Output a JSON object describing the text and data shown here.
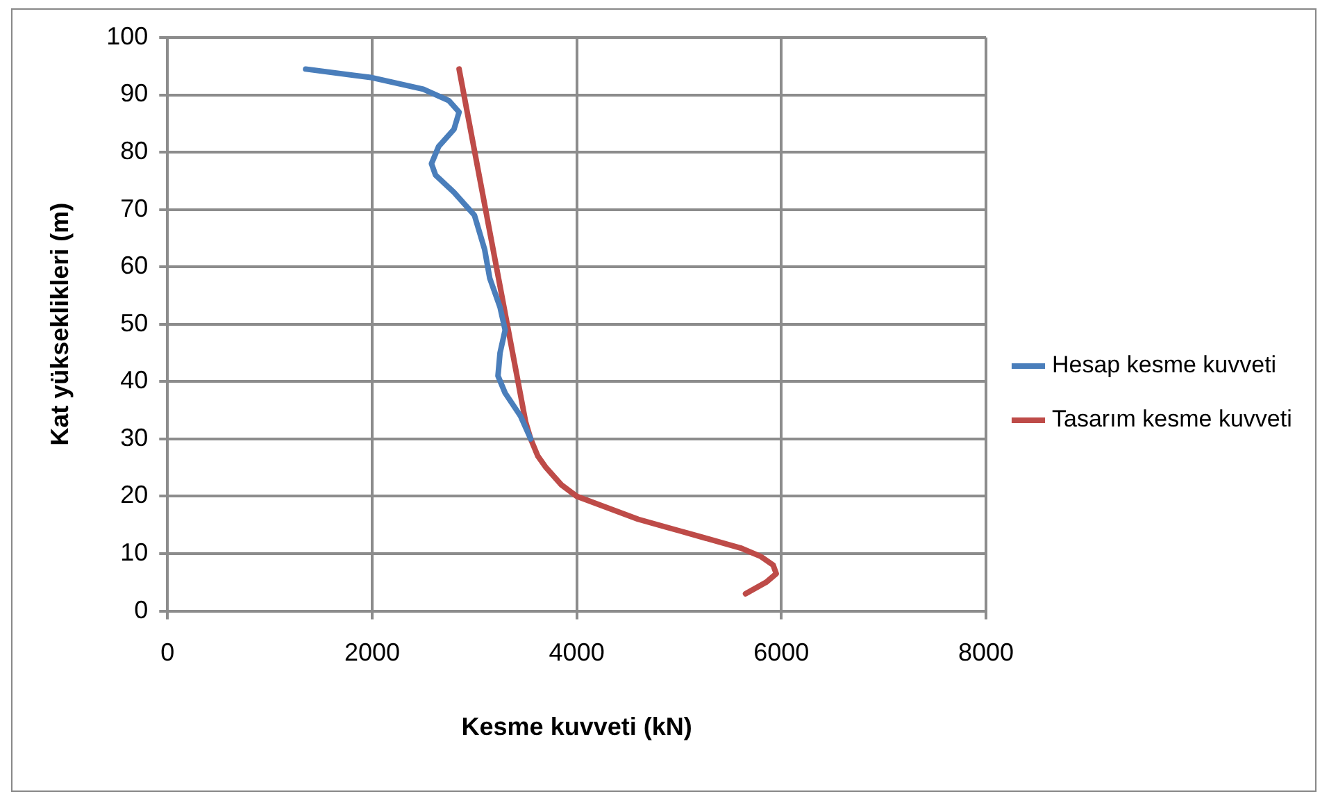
{
  "chart_data": {
    "type": "line",
    "xlabel": "Kesme kuvveti (kN)",
    "ylabel": "Kat yükseklikleri (m)",
    "xlim": [
      0,
      8000
    ],
    "xticks": [
      0,
      2000,
      4000,
      6000,
      8000
    ],
    "ylim": [
      0,
      100
    ],
    "yticks": [
      0,
      10,
      20,
      30,
      40,
      50,
      60,
      70,
      80,
      90,
      100
    ],
    "grid": true,
    "legend": "right",
    "marker": "none",
    "line_style": "solid",
    "series": [
      {
        "name": "Hesap kesme kuvveti",
        "color": "#4a7ebb",
        "x": [
          1350,
          2000,
          2500,
          2750,
          2850,
          2800,
          2650,
          2580,
          2620,
          2800,
          3000,
          3100,
          3150,
          3250,
          3300,
          3250,
          3230,
          3300,
          3450,
          3550
        ],
        "values": [
          94.5,
          93,
          91,
          89,
          87,
          84,
          81,
          78,
          76,
          73,
          69,
          63,
          58,
          53,
          49,
          45,
          41,
          38,
          34,
          30
        ]
      },
      {
        "name": "Tasarım kesme kuvveti",
        "color": "#be4b48",
        "x": [
          2850,
          3500,
          3550,
          3620,
          3700,
          3850,
          4000,
          4300,
          4600,
          5000,
          5300,
          5600,
          5800,
          5920,
          5950,
          5850,
          5650
        ],
        "values": [
          94.5,
          33,
          30,
          27,
          25,
          22,
          20,
          18,
          16,
          14,
          12.5,
          11,
          9.5,
          8,
          6.5,
          5,
          3
        ]
      }
    ]
  }
}
